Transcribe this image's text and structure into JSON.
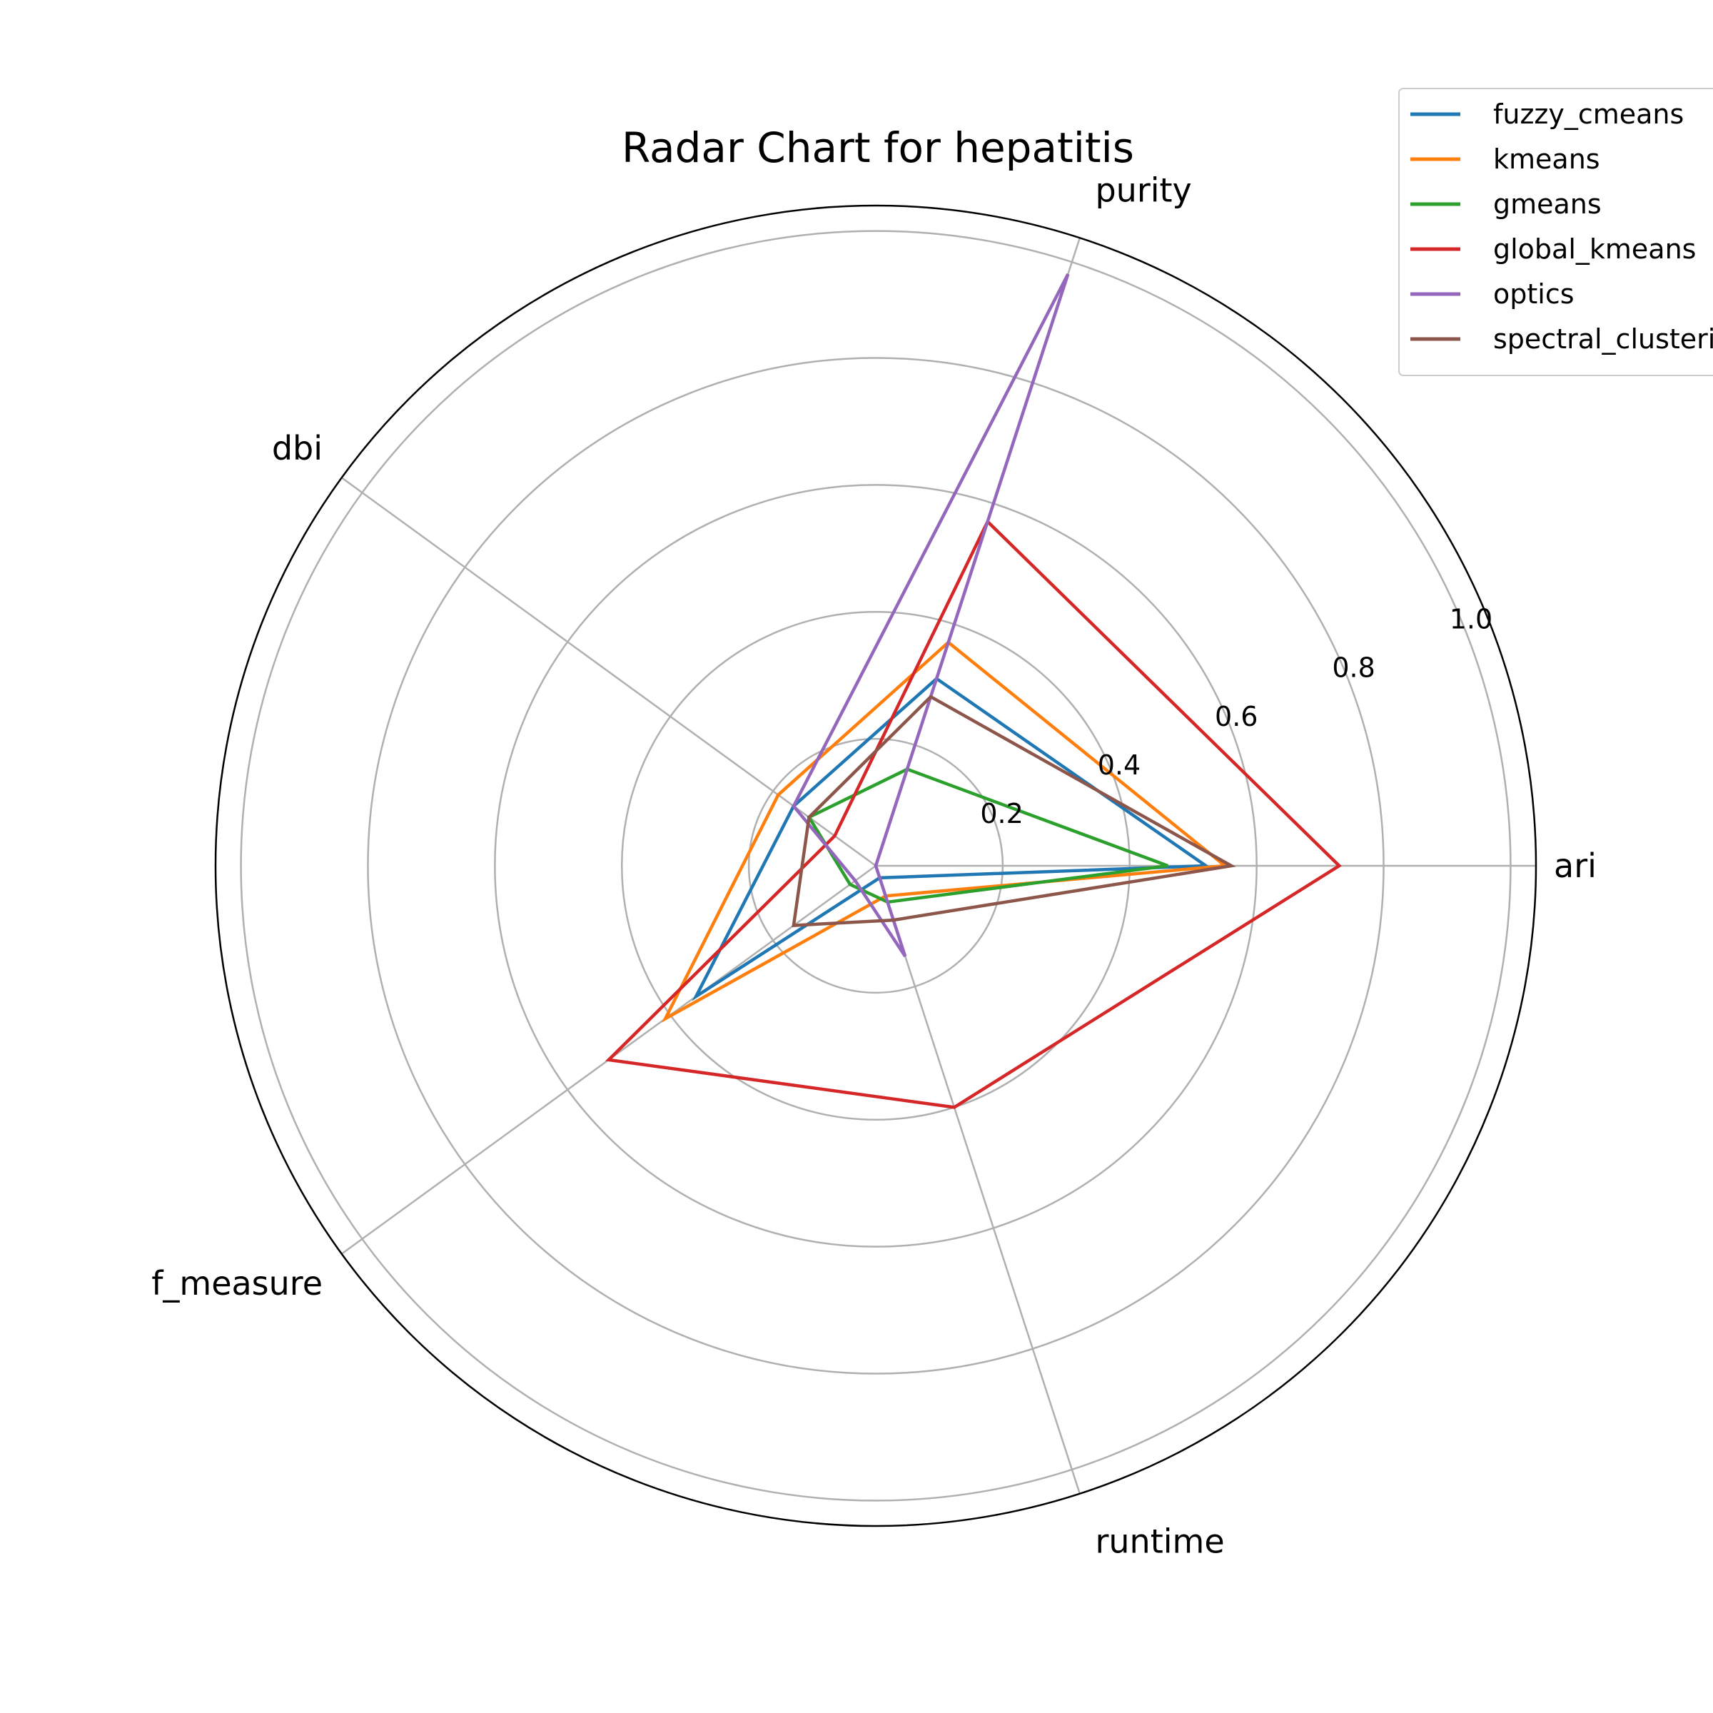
{
  "chart_data": {
    "type": "radar",
    "title": "Radar Chart for hepatitis",
    "axes": [
      "ari",
      "purity",
      "dbi",
      "f_measure",
      "runtime"
    ],
    "rlim": [
      0,
      1.04
    ],
    "rticks": [
      0.2,
      0.4,
      0.6,
      0.8,
      1.0
    ],
    "rtick_labels": [
      "0.2",
      "0.4",
      "0.6",
      "0.8",
      "1.0"
    ],
    "grid": true,
    "legend_position": "top-right",
    "series": [
      {
        "name": "fuzzy_cmeans",
        "color": "#1f77b4",
        "values": [
          0.52,
          0.31,
          0.16,
          0.35,
          0.02
        ]
      },
      {
        "name": "kmeans",
        "color": "#ff7f0e",
        "values": [
          0.55,
          0.37,
          0.19,
          0.41,
          0.05
        ]
      },
      {
        "name": "gmeans",
        "color": "#2ca02c",
        "values": [
          0.46,
          0.16,
          0.13,
          0.05,
          0.06
        ]
      },
      {
        "name": "global_kmeans",
        "color": "#d62728",
        "values": [
          0.73,
          0.57,
          0.08,
          0.52,
          0.4
        ]
      },
      {
        "name": "optics",
        "color": "#9467bd",
        "values": [
          0.0,
          0.98,
          0.16,
          0.04,
          0.15
        ]
      },
      {
        "name": "spectral_clustering",
        "color": "#8c564b",
        "values": [
          0.56,
          0.28,
          0.13,
          0.16,
          0.09
        ]
      }
    ]
  }
}
